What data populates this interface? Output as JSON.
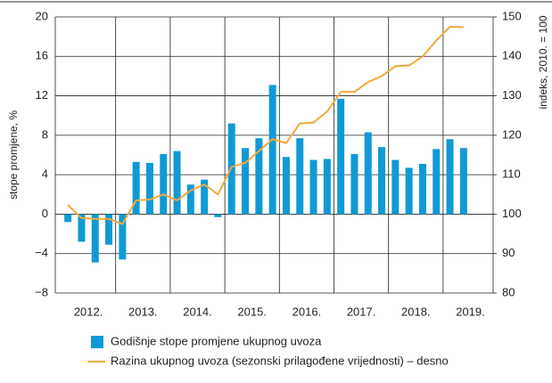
{
  "chart_data": {
    "type": "bar_line",
    "ylabel": "stope promjene, %",
    "y2label": "indeks, 2010. = 100",
    "categories": [
      null,
      "2012.",
      null,
      null,
      null,
      "2013.",
      null,
      null,
      null,
      "2014.",
      null,
      null,
      null,
      "2015.",
      null,
      null,
      null,
      "2016.",
      null,
      null,
      null,
      "2017.",
      null,
      null,
      null,
      "2018.",
      null,
      null,
      null,
      "2019."
    ],
    "series": [
      {
        "name": "Godišnje stope promjene ukupnog uvoza",
        "color": "#0f9ad5",
        "kind": "bar",
        "values": [
          -0.8,
          -2.8,
          -4.9,
          -3.1,
          -4.6,
          5.3,
          5.2,
          6.1,
          6.4,
          3.0,
          3.5,
          -0.3,
          9.2,
          6.7,
          7.7,
          13.1,
          5.8,
          7.7,
          5.5,
          5.6,
          11.7,
          6.1,
          8.3,
          6.8,
          5.5,
          4.7,
          5.1,
          6.6,
          7.6,
          6.7
        ]
      },
      {
        "name": "Razina ukupnog uvoza (sezonski prilagođene vrijednosti) – desno",
        "color": "#f2a93b",
        "kind": "line",
        "axis": "y2",
        "values": [
          102.3,
          99.0,
          98.8,
          98.8,
          97.5,
          103.5,
          103.7,
          105.0,
          103.5,
          106.0,
          107.5,
          105.0,
          112.0,
          113.0,
          116.0,
          119.0,
          118.0,
          123.0,
          123.2,
          126.0,
          131.0,
          131.0,
          133.5,
          135.0,
          137.5,
          137.7,
          140.0,
          144.0,
          147.5,
          147.4
        ]
      }
    ],
    "ylim": [
      -8,
      20
    ],
    "yticks": [
      {
        "value": -8,
        "label": "−8"
      },
      {
        "value": -4,
        "label": "−4"
      },
      0,
      4,
      8,
      12,
      16,
      20
    ],
    "y2lim": [
      80,
      150
    ],
    "y2ticks": [
      80,
      90,
      100,
      110,
      120,
      130,
      140,
      150
    ],
    "grid": true
  }
}
